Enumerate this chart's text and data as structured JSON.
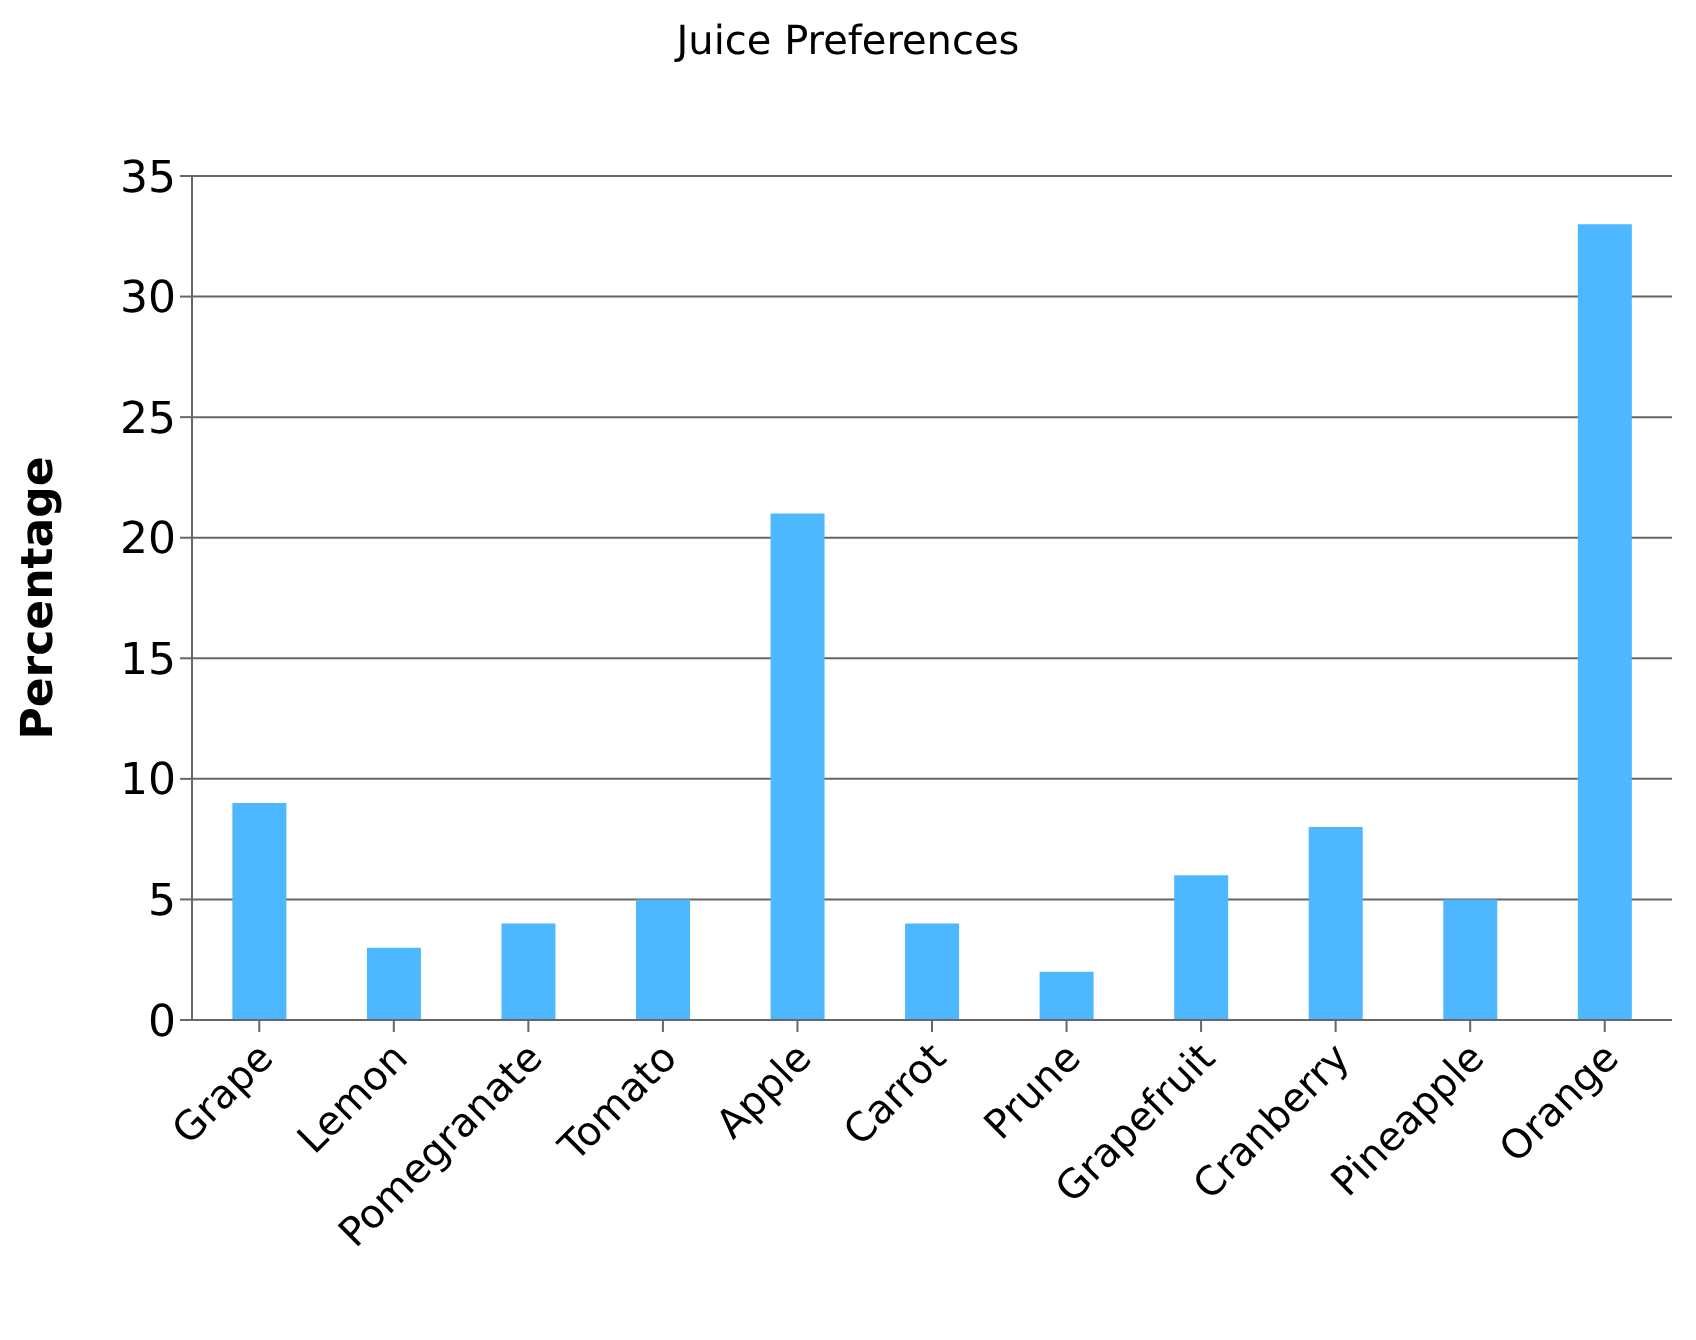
{
  "chart_data": {
    "type": "bar",
    "title": "Juice Preferences",
    "ylabel": "Percentage",
    "categories": [
      "Grape",
      "Lemon",
      "Pomegranate",
      "Tomato",
      "Apple",
      "Carrot",
      "Prune",
      "Grapefruit",
      "Cranberry",
      "Pineapple",
      "Orange"
    ],
    "values": [
      9,
      3,
      4,
      5,
      21,
      4,
      2,
      6,
      8,
      5,
      33
    ],
    "color": "#4db8ff",
    "ylim": [
      0,
      35
    ],
    "yticks": [
      0,
      5,
      10,
      15,
      20,
      25,
      30,
      35
    ],
    "grid": "y",
    "legend": false
  }
}
